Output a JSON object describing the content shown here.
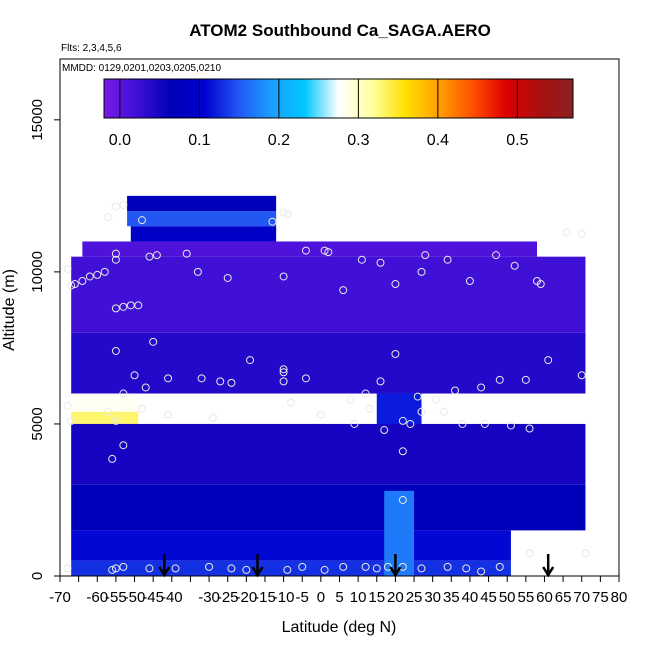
{
  "chart_data": {
    "type": "heatmap",
    "title": "ATOM2 Southbound Ca_SAGA.AERO",
    "flights_label": "Flts: 2,3,4,5,6",
    "dates_label": "MMDD: 0129,0201,0203,0205,0210",
    "xlabel": "Latitude (deg N)",
    "ylabel": "Altitude (m)",
    "xlim": [
      -70,
      80
    ],
    "ylim": [
      0,
      17000
    ],
    "x_ticks": [
      -70,
      -65,
      -60,
      -55,
      -50,
      -45,
      -40,
      -35,
      -30,
      -25,
      -20,
      -15,
      -10,
      -5,
      0,
      5,
      10,
      15,
      20,
      25,
      30,
      35,
      40,
      45,
      50,
      55,
      60,
      65,
      70,
      75,
      80
    ],
    "x_tick_labels": [
      "-70",
      "",
      "-60",
      "-55",
      "-50",
      "-45",
      "-40",
      "",
      "-30",
      "-25",
      "-20",
      "-15",
      "-10",
      "-5",
      "0",
      "5",
      "10",
      "15",
      "20",
      "25",
      "30",
      "35",
      "40",
      "45",
      "50",
      "55",
      "60",
      "65",
      "70",
      "75",
      "80"
    ],
    "y_ticks": [
      0,
      5000,
      10000,
      15000
    ],
    "colorbar": {
      "range": [
        -0.02,
        0.57
      ],
      "ticks": [
        0.0,
        0.1,
        0.2,
        0.3,
        0.4,
        0.5
      ],
      "tick_labels": [
        "0.0",
        "0.1",
        "0.2",
        "0.3",
        "0.4",
        "0.5"
      ],
      "colors": [
        "#7a1ae6",
        "#3d0fd6",
        "#0000b8",
        "#0000d0",
        "#2255f2",
        "#1a9eff",
        "#00c8ff",
        "#ffffff",
        "#ffffa0",
        "#ffe000",
        "#ffa000",
        "#ff5000",
        "#dd0000",
        "#aa1010",
        "#8a2020"
      ]
    },
    "cells": [
      {
        "lat": [
          -52,
          -12
        ],
        "alt": [
          12000,
          12500
        ],
        "value": 0.07
      },
      {
        "lat": [
          -52,
          -12
        ],
        "alt": [
          11500,
          12000
        ],
        "value": 0.15
      },
      {
        "lat": [
          -51,
          -12
        ],
        "alt": [
          11000,
          11500
        ],
        "value": 0.09
      },
      {
        "lat": [
          -64,
          58
        ],
        "alt": [
          10500,
          11000
        ],
        "value": 0.01
      },
      {
        "lat": [
          -67,
          71
        ],
        "alt": [
          8000,
          10500
        ],
        "value": 0.02
      },
      {
        "lat": [
          -67,
          71
        ],
        "alt": [
          6000,
          8000
        ],
        "value": 0.04
      },
      {
        "lat": [
          -67,
          -49
        ],
        "alt": [
          5400,
          6000
        ],
        "value": 0.28
      },
      {
        "lat": [
          -67,
          -49
        ],
        "alt": [
          4900,
          5400
        ],
        "value": 0.33
      },
      {
        "lat": [
          15,
          27
        ],
        "alt": [
          4900,
          6000
        ],
        "value": 0.12
      },
      {
        "lat": [
          -67,
          71
        ],
        "alt": [
          3000,
          5000
        ],
        "value": 0.05
      },
      {
        "lat": [
          -67,
          71
        ],
        "alt": [
          1500,
          3000
        ],
        "value": 0.07
      },
      {
        "lat": [
          -67,
          51
        ],
        "alt": [
          500,
          1500
        ],
        "value": 0.11
      },
      {
        "lat": [
          -67,
          51
        ],
        "alt": [
          0,
          500
        ],
        "value": 0.13
      },
      {
        "lat": [
          17,
          25
        ],
        "alt": [
          0,
          2800
        ],
        "value": 0.17
      }
    ],
    "samples": [
      {
        "lat": -55,
        "alt": 12150
      },
      {
        "lat": -57,
        "alt": 11800
      },
      {
        "lat": -53,
        "alt": 12200
      },
      {
        "lat": -48,
        "alt": 11700
      },
      {
        "lat": -13,
        "alt": 11650
      },
      {
        "lat": -10,
        "alt": 11950
      },
      {
        "lat": -9,
        "alt": 11900
      },
      {
        "lat": -55,
        "alt": 10600
      },
      {
        "lat": -55,
        "alt": 10400
      },
      {
        "lat": -46,
        "alt": 10500
      },
      {
        "lat": -44,
        "alt": 10550
      },
      {
        "lat": -36,
        "alt": 10600
      },
      {
        "lat": -4,
        "alt": 10700
      },
      {
        "lat": 1,
        "alt": 10700
      },
      {
        "lat": 2,
        "alt": 10650
      },
      {
        "lat": 11,
        "alt": 10400
      },
      {
        "lat": 16,
        "alt": 10300
      },
      {
        "lat": 28,
        "alt": 10550
      },
      {
        "lat": 34,
        "alt": 10400
      },
      {
        "lat": 47,
        "alt": 10550
      },
      {
        "lat": 66,
        "alt": 11300
      },
      {
        "lat": 70,
        "alt": 11250
      },
      {
        "lat": -68,
        "alt": 10100
      },
      {
        "lat": -67,
        "alt": 9550
      },
      {
        "lat": -66,
        "alt": 9600
      },
      {
        "lat": -64,
        "alt": 9700
      },
      {
        "lat": -62,
        "alt": 9850
      },
      {
        "lat": -60,
        "alt": 9900
      },
      {
        "lat": -58,
        "alt": 10000
      },
      {
        "lat": -33,
        "alt": 10000
      },
      {
        "lat": -25,
        "alt": 9800
      },
      {
        "lat": -10,
        "alt": 9850
      },
      {
        "lat": 6,
        "alt": 9400
      },
      {
        "lat": 20,
        "alt": 9600
      },
      {
        "lat": 27,
        "alt": 10000
      },
      {
        "lat": 40,
        "alt": 9700
      },
      {
        "lat": 52,
        "alt": 10200
      },
      {
        "lat": 58,
        "alt": 9700
      },
      {
        "lat": 59,
        "alt": 9600
      },
      {
        "lat": -55,
        "alt": 8800
      },
      {
        "lat": -53,
        "alt": 8850
      },
      {
        "lat": -51,
        "alt": 8900
      },
      {
        "lat": -49,
        "alt": 8900
      },
      {
        "lat": -45,
        "alt": 7700
      },
      {
        "lat": -55,
        "alt": 7400
      },
      {
        "lat": -19,
        "alt": 7100
      },
      {
        "lat": -10,
        "alt": 6800
      },
      {
        "lat": -10,
        "alt": 6700
      },
      {
        "lat": 20,
        "alt": 7300
      },
      {
        "lat": 61,
        "alt": 7100
      },
      {
        "lat": 70,
        "alt": 6600
      },
      {
        "lat": -57,
        "alt": 5400
      },
      {
        "lat": -53,
        "alt": 6000
      },
      {
        "lat": -50,
        "alt": 6600
      },
      {
        "lat": -47,
        "alt": 6200
      },
      {
        "lat": -41,
        "alt": 6500
      },
      {
        "lat": -32,
        "alt": 6500
      },
      {
        "lat": -27,
        "alt": 6400
      },
      {
        "lat": -24,
        "alt": 6350
      },
      {
        "lat": -10,
        "alt": 6400
      },
      {
        "lat": -4,
        "alt": 6500
      },
      {
        "lat": 8,
        "alt": 5800
      },
      {
        "lat": 12,
        "alt": 6000
      },
      {
        "lat": 16,
        "alt": 6400
      },
      {
        "lat": -8,
        "alt": 5700
      },
      {
        "lat": 26,
        "alt": 5900
      },
      {
        "lat": 31,
        "alt": 5800
      },
      {
        "lat": 36,
        "alt": 6100
      },
      {
        "lat": 43,
        "alt": 6200
      },
      {
        "lat": 48,
        "alt": 6450
      },
      {
        "lat": 55,
        "alt": 6450
      },
      {
        "lat": -68,
        "alt": 5600
      },
      {
        "lat": -67,
        "alt": 5100
      },
      {
        "lat": -55,
        "alt": 5100
      },
      {
        "lat": -48,
        "alt": 5500
      },
      {
        "lat": -41,
        "alt": 5300
      },
      {
        "lat": -29,
        "alt": 5200
      },
      {
        "lat": 0,
        "alt": 5300
      },
      {
        "lat": 9,
        "alt": 5000
      },
      {
        "lat": 13,
        "alt": 5500
      },
      {
        "lat": 17,
        "alt": 4800
      },
      {
        "lat": 22,
        "alt": 5100
      },
      {
        "lat": 24,
        "alt": 5000
      },
      {
        "lat": 27,
        "alt": 5400
      },
      {
        "lat": 33,
        "alt": 5400
      },
      {
        "lat": 38,
        "alt": 5000
      },
      {
        "lat": 44,
        "alt": 5000
      },
      {
        "lat": 51,
        "alt": 4950
      },
      {
        "lat": 56,
        "alt": 4850
      },
      {
        "lat": -53,
        "alt": 4300
      },
      {
        "lat": -56,
        "alt": 3850
      },
      {
        "lat": 22,
        "alt": 4100
      },
      {
        "lat": 22,
        "alt": 2500
      },
      {
        "lat": -68,
        "alt": 250
      },
      {
        "lat": -56,
        "alt": 200
      },
      {
        "lat": -55,
        "alt": 250
      },
      {
        "lat": -53,
        "alt": 300
      },
      {
        "lat": -46,
        "alt": 250
      },
      {
        "lat": -39,
        "alt": 250
      },
      {
        "lat": -30,
        "alt": 300
      },
      {
        "lat": -24,
        "alt": 250
      },
      {
        "lat": -20,
        "alt": 200
      },
      {
        "lat": -9,
        "alt": 200
      },
      {
        "lat": -5,
        "alt": 300
      },
      {
        "lat": 1,
        "alt": 200
      },
      {
        "lat": 6,
        "alt": 300
      },
      {
        "lat": 12,
        "alt": 300
      },
      {
        "lat": 15,
        "alt": 250
      },
      {
        "lat": 18,
        "alt": 300
      },
      {
        "lat": 22,
        "alt": 300
      },
      {
        "lat": 27,
        "alt": 250
      },
      {
        "lat": 34,
        "alt": 300
      },
      {
        "lat": 39,
        "alt": 250
      },
      {
        "lat": 43,
        "alt": 150
      },
      {
        "lat": 48,
        "alt": 300
      },
      {
        "lat": 56,
        "alt": 750
      },
      {
        "lat": 71,
        "alt": 750
      }
    ],
    "arrow_latitudes": [
      -42,
      -17,
      20,
      61
    ]
  }
}
